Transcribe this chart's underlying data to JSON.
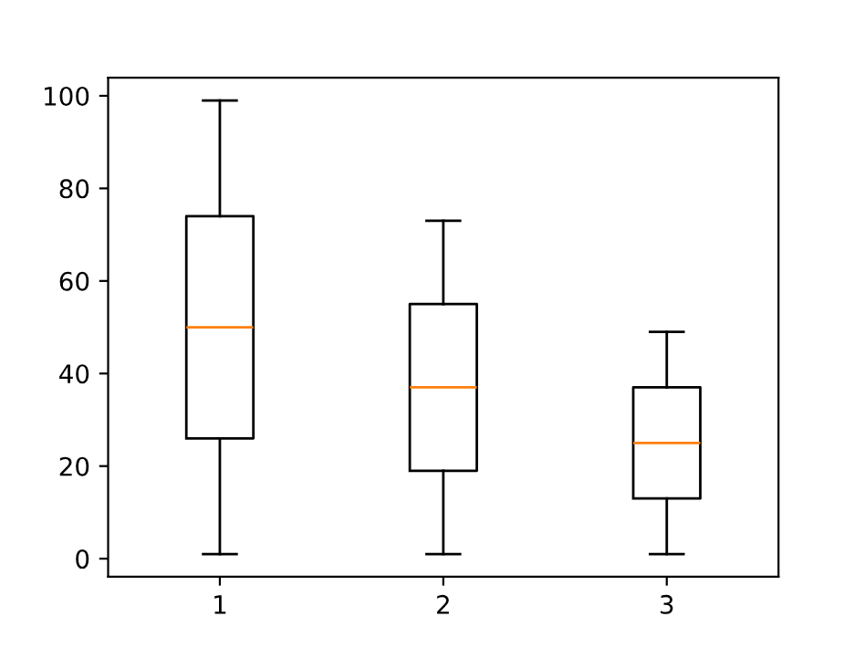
{
  "chart_data": {
    "type": "box",
    "categories": [
      "1",
      "2",
      "3"
    ],
    "boxes": [
      {
        "low": 1,
        "q1": 26,
        "median": 50,
        "q3": 74,
        "high": 99
      },
      {
        "low": 1,
        "q1": 19,
        "median": 37,
        "q3": 55,
        "high": 73
      },
      {
        "low": 1,
        "q1": 13,
        "median": 25,
        "q3": 37,
        "high": 49
      }
    ],
    "color": "#000000",
    "ylim": [
      -3.9,
      103.9
    ],
    "yticks": [
      0,
      20,
      40,
      60,
      80,
      100
    ],
    "grid": false
  }
}
